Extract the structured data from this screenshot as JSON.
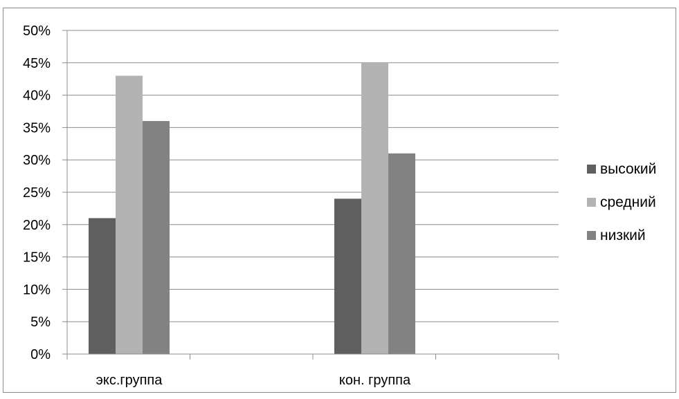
{
  "chart_data": {
    "type": "bar",
    "title": "",
    "xlabel": "",
    "ylabel": "",
    "categories": [
      "экс.группа",
      "кон. группа"
    ],
    "series": [
      {
        "name": "высокий",
        "values": [
          21,
          24
        ],
        "color": "#5f5f5f"
      },
      {
        "name": "средний",
        "values": [
          43,
          45
        ],
        "color": "#b3b3b3"
      },
      {
        "name": "низкий",
        "values": [
          36,
          31
        ],
        "color": "#828282"
      }
    ],
    "ylim": [
      0,
      50
    ],
    "yticks": [
      "0%",
      "5%",
      "10%",
      "15%",
      "20%",
      "25%",
      "30%",
      "35%",
      "40%",
      "45%",
      "50%"
    ],
    "grid": true,
    "legend": "right"
  }
}
